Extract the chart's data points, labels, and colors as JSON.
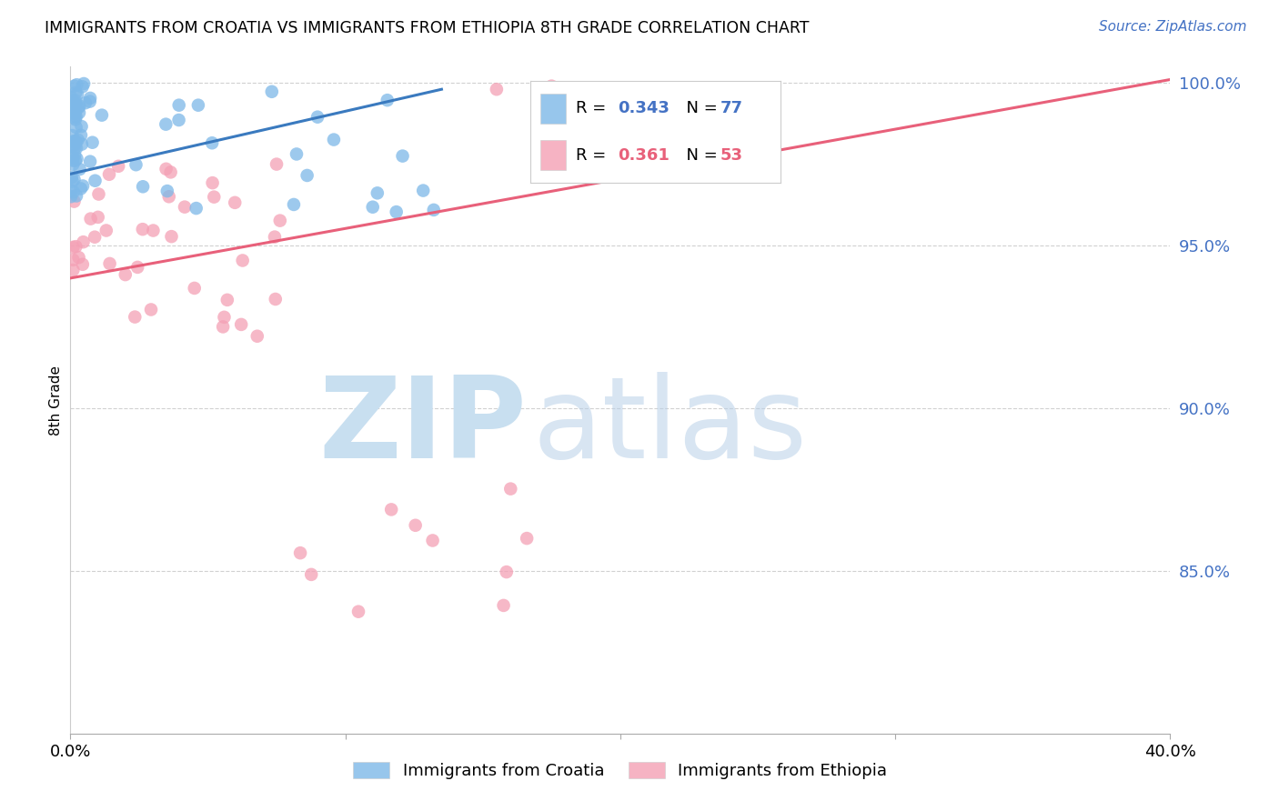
{
  "title": "IMMIGRANTS FROM CROATIA VS IMMIGRANTS FROM ETHIOPIA 8TH GRADE CORRELATION CHART",
  "source": "Source: ZipAtlas.com",
  "ylabel": "8th Grade",
  "x_min": 0.0,
  "x_max": 0.4,
  "y_min": 0.8,
  "y_max": 1.005,
  "y_ticks": [
    0.85,
    0.9,
    0.95,
    1.0
  ],
  "y_tick_labels": [
    "85.0%",
    "90.0%",
    "95.0%",
    "100.0%"
  ],
  "croatia_color": "#7db8e8",
  "ethiopia_color": "#f4a0b5",
  "croatia_line_color": "#3a7abf",
  "ethiopia_line_color": "#e8607a",
  "croatia_blue": "#4472c4",
  "ethiopia_pink": "#e8607a",
  "legend_border_color": "#cccccc",
  "grid_color": "#cccccc",
  "watermark_zip_color": "#c8dff0",
  "watermark_atlas_color": "#b8d0e8",
  "R_croatia": 0.343,
  "N_croatia": 77,
  "R_ethiopia": 0.361,
  "N_ethiopia": 53,
  "croatia_line_x": [
    0.0,
    0.135
  ],
  "croatia_line_y": [
    0.972,
    0.998
  ],
  "ethiopia_line_x": [
    0.0,
    0.4
  ],
  "ethiopia_line_y": [
    0.94,
    1.001
  ]
}
